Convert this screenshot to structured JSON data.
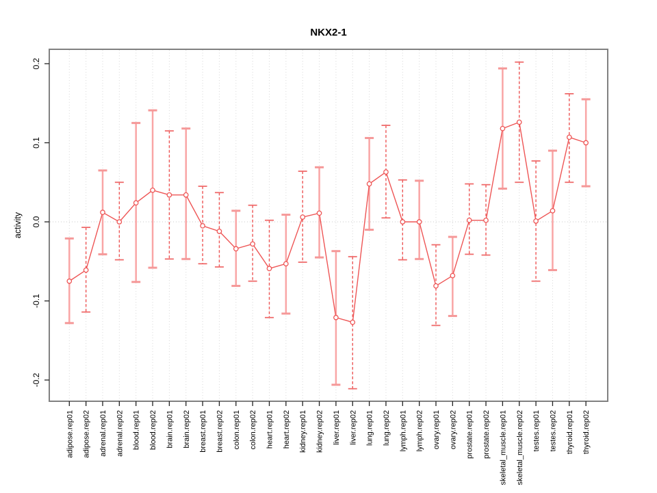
{
  "chart_data": {
    "type": "scatter",
    "subtype": "points-with-error-bars-connected-by-line",
    "title": "NKX2-1",
    "xlabel": "",
    "ylabel": "activity",
    "ylim": [
      -0.227,
      0.218
    ],
    "yticks": [
      0.2,
      0.1,
      0.0,
      -0.1,
      -0.2
    ],
    "ytick_labels": [
      "0.2",
      "0.1",
      "0.0",
      "-0.1",
      "-0.2"
    ],
    "grid": "vertical-dotted-at-each-category-plus-dotted-zero-line",
    "legend": "none",
    "categories": [
      "adipose.rep01",
      "adipose.rep02",
      "adrenal.rep01",
      "adrenal.rep02",
      "blood.rep01",
      "blood.rep02",
      "brain.rep01",
      "brain.rep02",
      "breast.rep01",
      "breast.rep02",
      "colon.rep01",
      "colon.rep02",
      "heart.rep01",
      "heart.rep02",
      "kidney.rep01",
      "kidney.rep02",
      "liver.rep01",
      "liver.rep02",
      "lung.rep01",
      "lung.rep02",
      "lymph.rep01",
      "lymph.rep02",
      "ovary.rep01",
      "ovary.rep02",
      "prostate.rep01",
      "prostate.rep02",
      "skeletal_muscle.rep01",
      "skeletal_muscle.rep02",
      "testes.rep01",
      "testes.rep02",
      "thyroid.rep01",
      "thyroid.rep02"
    ],
    "series": [
      {
        "name": "activity",
        "points": [
          {
            "label": "adipose.rep01",
            "value": -0.075,
            "lo": -0.128,
            "hi": -0.021,
            "bar_style": "solid"
          },
          {
            "label": "adipose.rep02",
            "value": -0.061,
            "lo": -0.114,
            "hi": -0.007,
            "bar_style": "dashed"
          },
          {
            "label": "adrenal.rep01",
            "value": 0.012,
            "lo": -0.041,
            "hi": 0.065,
            "bar_style": "solid"
          },
          {
            "label": "adrenal.rep02",
            "value": 0.0,
            "lo": -0.048,
            "hi": 0.05,
            "bar_style": "dashed"
          },
          {
            "label": "blood.rep01",
            "value": 0.024,
            "lo": -0.076,
            "hi": 0.125,
            "bar_style": "solid"
          },
          {
            "label": "blood.rep02",
            "value": 0.04,
            "lo": -0.058,
            "hi": 0.141,
            "bar_style": "solid"
          },
          {
            "label": "brain.rep01",
            "value": 0.034,
            "lo": -0.047,
            "hi": 0.115,
            "bar_style": "dashed"
          },
          {
            "label": "brain.rep02",
            "value": 0.034,
            "lo": -0.047,
            "hi": 0.118,
            "bar_style": "solid"
          },
          {
            "label": "breast.rep01",
            "value": -0.005,
            "lo": -0.053,
            "hi": 0.045,
            "bar_style": "dashed"
          },
          {
            "label": "breast.rep02",
            "value": -0.012,
            "lo": -0.057,
            "hi": 0.037,
            "bar_style": "dashed"
          },
          {
            "label": "colon.rep01",
            "value": -0.034,
            "lo": -0.081,
            "hi": 0.014,
            "bar_style": "solid"
          },
          {
            "label": "colon.rep02",
            "value": -0.028,
            "lo": -0.075,
            "hi": 0.021,
            "bar_style": "dashed"
          },
          {
            "label": "heart.rep01",
            "value": -0.059,
            "lo": -0.121,
            "hi": 0.002,
            "bar_style": "dashed"
          },
          {
            "label": "heart.rep02",
            "value": -0.053,
            "lo": -0.116,
            "hi": 0.009,
            "bar_style": "solid"
          },
          {
            "label": "kidney.rep01",
            "value": 0.006,
            "lo": -0.051,
            "hi": 0.064,
            "bar_style": "dashed"
          },
          {
            "label": "kidney.rep02",
            "value": 0.011,
            "lo": -0.045,
            "hi": 0.069,
            "bar_style": "solid"
          },
          {
            "label": "liver.rep01",
            "value": -0.121,
            "lo": -0.206,
            "hi": -0.037,
            "bar_style": "solid"
          },
          {
            "label": "liver.rep02",
            "value": -0.127,
            "lo": -0.211,
            "hi": -0.044,
            "bar_style": "dashed"
          },
          {
            "label": "lung.rep01",
            "value": 0.048,
            "lo": -0.01,
            "hi": 0.106,
            "bar_style": "solid"
          },
          {
            "label": "lung.rep02",
            "value": 0.063,
            "lo": 0.005,
            "hi": 0.122,
            "bar_style": "dashed"
          },
          {
            "label": "lymph.rep01",
            "value": 0.0,
            "lo": -0.048,
            "hi": 0.053,
            "bar_style": "dashed"
          },
          {
            "label": "lymph.rep02",
            "value": 0.0,
            "lo": -0.047,
            "hi": 0.052,
            "bar_style": "solid"
          },
          {
            "label": "ovary.rep01",
            "value": -0.081,
            "lo": -0.131,
            "hi": -0.029,
            "bar_style": "dashed"
          },
          {
            "label": "ovary.rep02",
            "value": -0.068,
            "lo": -0.119,
            "hi": -0.019,
            "bar_style": "solid"
          },
          {
            "label": "prostate.rep01",
            "value": 0.002,
            "lo": -0.041,
            "hi": 0.048,
            "bar_style": "dashed"
          },
          {
            "label": "prostate.rep02",
            "value": 0.002,
            "lo": -0.042,
            "hi": 0.047,
            "bar_style": "dashed"
          },
          {
            "label": "skeletal_muscle.rep01",
            "value": 0.118,
            "lo": 0.042,
            "hi": 0.194,
            "bar_style": "solid"
          },
          {
            "label": "skeletal_muscle.rep02",
            "value": 0.126,
            "lo": 0.05,
            "hi": 0.202,
            "bar_style": "dashed"
          },
          {
            "label": "testes.rep01",
            "value": 0.001,
            "lo": -0.075,
            "hi": 0.077,
            "bar_style": "dashed"
          },
          {
            "label": "testes.rep02",
            "value": 0.014,
            "lo": -0.061,
            "hi": 0.09,
            "bar_style": "solid"
          },
          {
            "label": "thyroid.rep01",
            "value": 0.107,
            "lo": 0.05,
            "hi": 0.162,
            "bar_style": "dashed"
          },
          {
            "label": "thyroid.rep02",
            "value": 0.1,
            "lo": 0.045,
            "hi": 0.155,
            "bar_style": "solid"
          }
        ]
      }
    ],
    "colors": {
      "series_line": "#ee5555",
      "point_stroke": "#ee5555",
      "point_fill": "#ffffff",
      "bar_solid": "#f9a5a5",
      "cap_solid": "#f59898",
      "bar_dashed": "#ee5555",
      "cap_dashed": "#ef6b6b",
      "grid": "#d8d8d8",
      "zero_line": "#c9c9c9",
      "plot_border": "#808080",
      "tick": "#222222",
      "background": "#ffffff"
    }
  }
}
